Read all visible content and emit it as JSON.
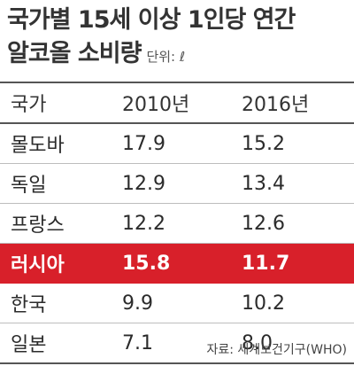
{
  "header": {
    "title_line1": "국가별 15세 이상 1인당 연간",
    "title_line2": "알코올 소비량",
    "unit": "단위: ℓ"
  },
  "chart_data": {
    "type": "table",
    "columns": [
      "국가",
      "2010년",
      "2016년"
    ],
    "rows": [
      {
        "country": "몰도바",
        "y2010": "17.9",
        "y2016": "15.2"
      },
      {
        "country": "독일",
        "y2010": "12.9",
        "y2016": "13.4"
      },
      {
        "country": "프랑스",
        "y2010": "12.2",
        "y2016": "12.6"
      },
      {
        "country": "러시아",
        "y2010": "15.8",
        "y2016": "11.7"
      },
      {
        "country": "한국",
        "y2010": "9.9",
        "y2016": "10.2"
      },
      {
        "country": "일본",
        "y2010": "7.1",
        "y2016": "8.0"
      }
    ],
    "highlight_row": "러시아",
    "highlight_color": "#d8202a"
  },
  "footer": {
    "source": "자료: 세계보건기구(WHO)"
  }
}
